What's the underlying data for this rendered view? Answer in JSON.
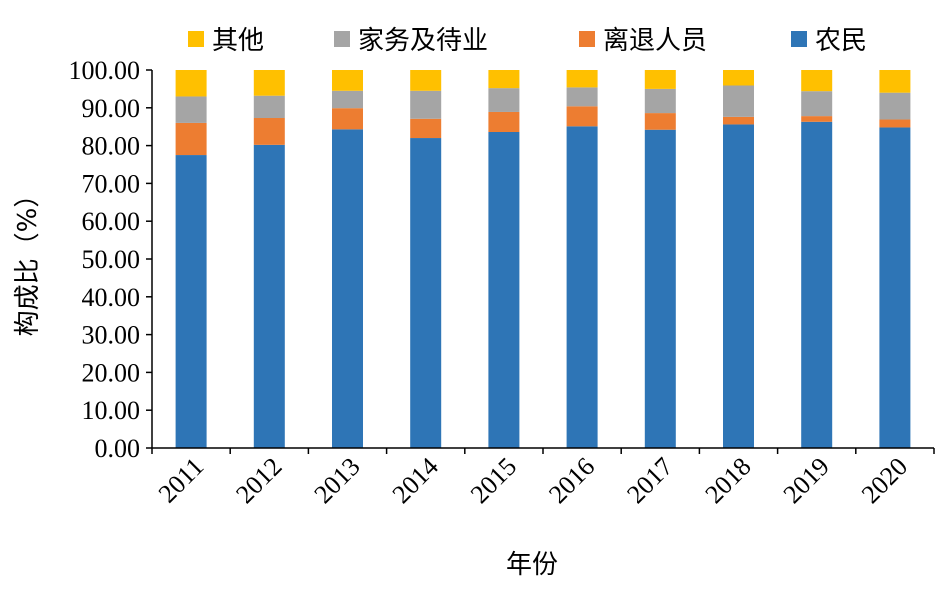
{
  "chart_data": {
    "type": "bar",
    "stacked": true,
    "categories": [
      "2011",
      "2012",
      "2013",
      "2014",
      "2015",
      "2016",
      "2017",
      "2018",
      "2019",
      "2020"
    ],
    "series": [
      {
        "name": "农民",
        "color": "#2E75B6",
        "values": [
          77.5,
          80.2,
          84.3,
          82.0,
          83.6,
          85.1,
          84.2,
          85.6,
          86.3,
          84.8
        ]
      },
      {
        "name": "离退人员",
        "color": "#ED7D31",
        "values": [
          8.5,
          7.1,
          5.6,
          5.1,
          5.3,
          5.3,
          4.4,
          2.0,
          1.5,
          2.1
        ]
      },
      {
        "name": "家务及待业",
        "color": "#A5A5A5",
        "values": [
          7.0,
          5.9,
          4.6,
          7.4,
          6.3,
          5.0,
          6.4,
          8.3,
          6.6,
          7.1
        ]
      },
      {
        "name": "其他",
        "color": "#FFC000",
        "values": [
          7.0,
          6.8,
          5.5,
          5.5,
          4.8,
          4.6,
          5.0,
          4.1,
          5.6,
          6.0
        ]
      }
    ],
    "legend_order": [
      "其他",
      "家务及待业",
      "离退人员",
      "农民"
    ],
    "legend_position": "top",
    "xlabel": "年份",
    "ylabel": "构成比（%）",
    "ylim": [
      0,
      100
    ],
    "yticks": [
      "0.00",
      "10.00",
      "20.00",
      "30.00",
      "40.00",
      "50.00",
      "60.00",
      "70.00",
      "80.00",
      "90.00",
      "100.00"
    ],
    "grid": false
  }
}
